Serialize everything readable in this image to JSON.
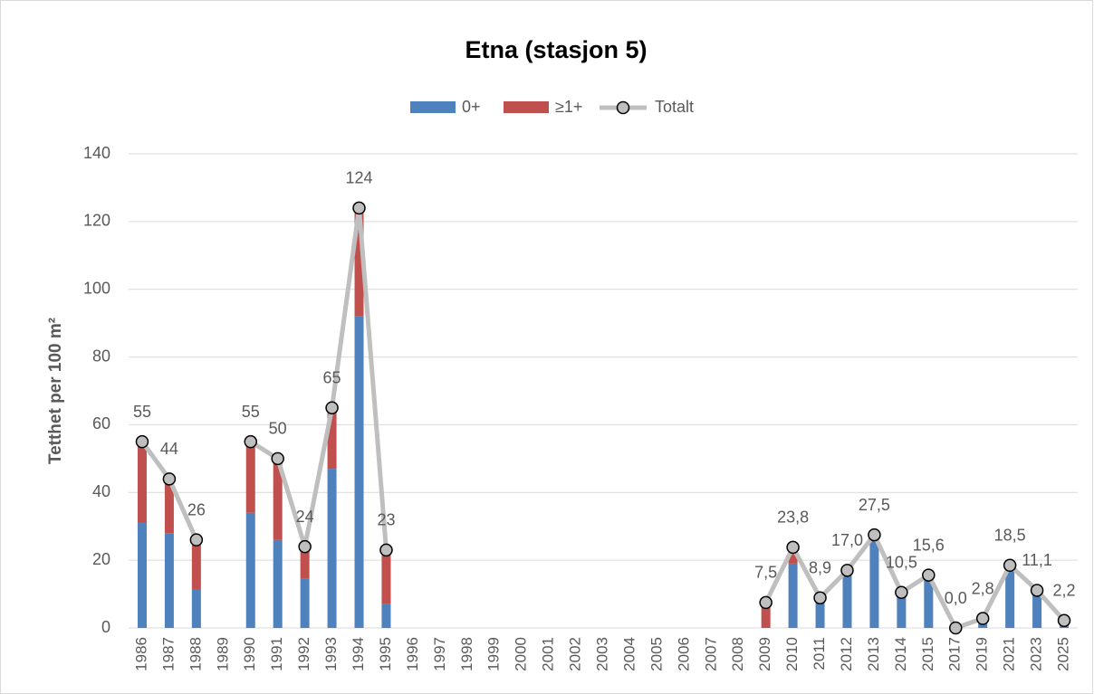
{
  "chart_data": {
    "type": "bar",
    "title": "Etna (stasjon 5)",
    "y_label": "Tetthet per 100 m²",
    "categories": [
      "1986",
      "1987",
      "1988",
      "1989",
      "1990",
      "1991",
      "1992",
      "1993",
      "1994",
      "1995",
      "1996",
      "1997",
      "1998",
      "1999",
      "2000",
      "2001",
      "2002",
      "2003",
      "2004",
      "2005",
      "2006",
      "2007",
      "2008",
      "2009",
      "2010",
      "2011",
      "2012",
      "2013",
      "2014",
      "2015",
      "2017",
      "2019",
      "2021",
      "2023",
      "2025"
    ],
    "stacked": true,
    "series": [
      {
        "name": "0+",
        "type": "bar",
        "color": "#4f81bd",
        "values": [
          31,
          28,
          11.5,
          null,
          34,
          26,
          14.5,
          47,
          92,
          7,
          null,
          null,
          null,
          null,
          null,
          null,
          null,
          null,
          null,
          null,
          null,
          null,
          null,
          0,
          19,
          8,
          16,
          26,
          10,
          14,
          0,
          1.5,
          17.5,
          10.5,
          0.5
        ]
      },
      {
        "name": "≥1+",
        "type": "bar",
        "color": "#c0504d",
        "values": [
          24,
          16,
          14.5,
          null,
          21,
          24,
          9.5,
          18,
          32,
          16,
          null,
          null,
          null,
          null,
          null,
          null,
          null,
          null,
          null,
          null,
          null,
          null,
          null,
          7.5,
          4.8,
          0.9,
          1,
          1.5,
          0.5,
          1.6,
          0,
          1.3,
          1,
          0.6,
          1.7
        ]
      },
      {
        "name": "Totalt",
        "type": "line",
        "color": "#bfbfbf",
        "values": [
          55,
          44,
          26,
          null,
          55,
          50,
          24,
          65,
          124,
          23,
          null,
          null,
          null,
          null,
          null,
          null,
          null,
          null,
          null,
          null,
          null,
          null,
          null,
          7.5,
          23.8,
          8.9,
          17,
          27.5,
          10.5,
          15.6,
          0,
          2.8,
          18.5,
          11.1,
          2.2
        ],
        "value_labels": [
          "55",
          "44",
          "26",
          null,
          "55",
          "50",
          "24",
          "65",
          "124",
          "23",
          null,
          null,
          null,
          null,
          null,
          null,
          null,
          null,
          null,
          null,
          null,
          null,
          null,
          "7,5",
          "23,8",
          "8,9",
          "17,0",
          "27,5",
          "10,5",
          "15,6",
          "0,0",
          "2,8",
          "18,5",
          "11,1",
          "2,2"
        ]
      }
    ],
    "ylim": [
      0,
      140
    ],
    "yticks": [
      0,
      20,
      40,
      60,
      80,
      100,
      120,
      140
    ],
    "grid": true,
    "legend": "top"
  }
}
